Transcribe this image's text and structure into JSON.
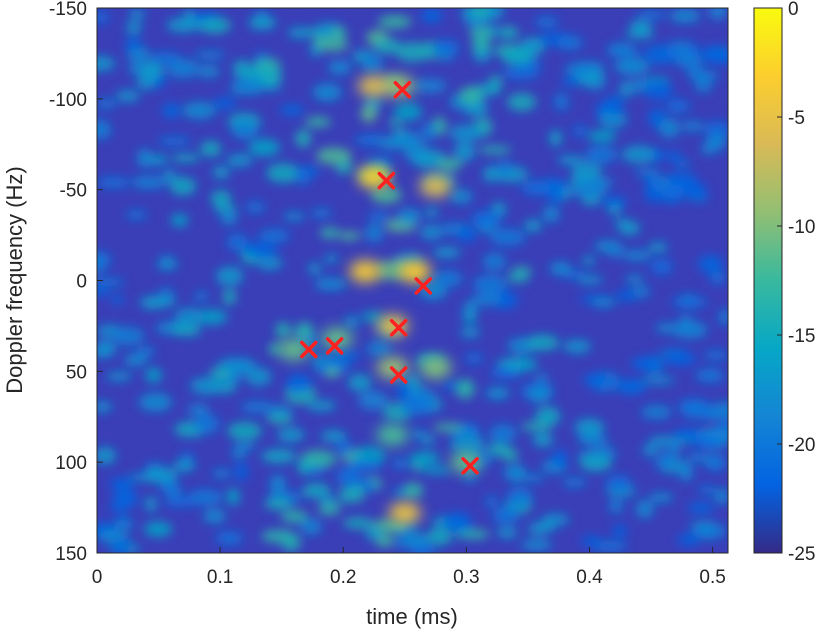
{
  "chart_data": {
    "type": "heatmap",
    "title": "",
    "xlabel": "time (ms)",
    "ylabel": "Doppler frequency (Hz)",
    "xlim": [
      0,
      0.5125
    ],
    "ylim": [
      -150,
      150
    ],
    "y_reversed": true,
    "x_ticks": [
      {
        "value": 0,
        "label": "0"
      },
      {
        "value": 0.1,
        "label": "0.1"
      },
      {
        "value": 0.2,
        "label": "0.2"
      },
      {
        "value": 0.3,
        "label": "0.3"
      },
      {
        "value": 0.4,
        "label": "0.4"
      },
      {
        "value": 0.5,
        "label": "0.5"
      }
    ],
    "y_ticks": [
      {
        "value": -150,
        "label": "-150"
      },
      {
        "value": -100,
        "label": "-100"
      },
      {
        "value": -50,
        "label": "-50"
      },
      {
        "value": 0,
        "label": "0"
      },
      {
        "value": 50,
        "label": "50"
      },
      {
        "value": 100,
        "label": "100"
      },
      {
        "value": 150,
        "label": "150"
      }
    ],
    "colorbar": {
      "colormap": "parula",
      "clim": [
        -25,
        0
      ],
      "ticks": [
        {
          "value": 0,
          "label": "0"
        },
        {
          "value": -5,
          "label": "-5"
        },
        {
          "value": -10,
          "label": "-10"
        },
        {
          "value": -15,
          "label": "-15"
        },
        {
          "value": -20,
          "label": "-20"
        },
        {
          "value": -25,
          "label": "-25"
        }
      ]
    },
    "intensity_peaks": [
      {
        "x": 0.225,
        "y": -107,
        "value": -6
      },
      {
        "x": 0.245,
        "y": -107,
        "value": -9
      },
      {
        "x": 0.225,
        "y": -57,
        "value": -3
      },
      {
        "x": 0.275,
        "y": -52,
        "value": -6
      },
      {
        "x": 0.218,
        "y": -5,
        "value": -4
      },
      {
        "x": 0.258,
        "y": -5,
        "value": -3
      },
      {
        "x": 0.24,
        "y": 25,
        "value": -5
      },
      {
        "x": 0.24,
        "y": 48,
        "value": -9
      },
      {
        "x": 0.275,
        "y": 48,
        "value": -10
      },
      {
        "x": 0.16,
        "y": 38,
        "value": -11
      },
      {
        "x": 0.195,
        "y": 32,
        "value": -11
      },
      {
        "x": 0.3,
        "y": 100,
        "value": -11
      },
      {
        "x": 0.25,
        "y": 128,
        "value": -5
      },
      {
        "x": 0.24,
        "y": 85,
        "value": -12
      }
    ],
    "markers": {
      "symbol": "x",
      "color": "#ff2020",
      "points": [
        {
          "x": 0.248,
          "y": -105
        },
        {
          "x": 0.235,
          "y": -55
        },
        {
          "x": 0.265,
          "y": 3
        },
        {
          "x": 0.245,
          "y": 26
        },
        {
          "x": 0.172,
          "y": 38
        },
        {
          "x": 0.193,
          "y": 36
        },
        {
          "x": 0.245,
          "y": 52
        },
        {
          "x": 0.303,
          "y": 102
        }
      ]
    }
  }
}
